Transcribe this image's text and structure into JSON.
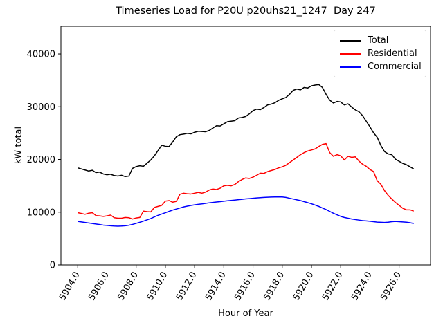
{
  "chart_data": {
    "type": "line",
    "title": "Timeseries Load for P20U p20uhs21_1247  Day 247",
    "xlabel": "Hour of Year",
    "ylabel": "kW total",
    "xlim": [
      5902.85,
      5928.15
    ],
    "ylim": [
      0,
      45250
    ],
    "grid": false,
    "legend_position": "upper right",
    "xticks": [
      5904,
      5906,
      5908,
      5910,
      5912,
      5914,
      5916,
      5918,
      5920,
      5922,
      5924,
      5926
    ],
    "xtick_labels": [
      "5904.0",
      "5906.0",
      "5908.0",
      "5910.0",
      "5912.0",
      "5914.0",
      "5916.0",
      "5918.0",
      "5920.0",
      "5922.0",
      "5924.0",
      "5926.0"
    ],
    "xtick_rotation": 60,
    "yticks": [
      0,
      10000,
      20000,
      30000,
      40000
    ],
    "ytick_labels": [
      "0",
      "10000",
      "20000",
      "30000",
      "40000"
    ],
    "x": [
      5904.0,
      5904.25,
      5904.5,
      5904.75,
      5905.0,
      5905.25,
      5905.5,
      5905.75,
      5906.0,
      5906.25,
      5906.5,
      5906.75,
      5907.0,
      5907.25,
      5907.5,
      5907.75,
      5908.0,
      5908.25,
      5908.5,
      5908.75,
      5909.0,
      5909.25,
      5909.5,
      5909.75,
      5910.0,
      5910.25,
      5910.5,
      5910.75,
      5911.0,
      5911.25,
      5911.5,
      5911.75,
      5912.0,
      5912.25,
      5912.5,
      5912.75,
      5913.0,
      5913.25,
      5913.5,
      5913.75,
      5914.0,
      5914.25,
      5914.5,
      5914.75,
      5915.0,
      5915.25,
      5915.5,
      5915.75,
      5916.0,
      5916.25,
      5916.5,
      5916.75,
      5917.0,
      5917.25,
      5917.5,
      5917.75,
      5918.0,
      5918.25,
      5918.5,
      5918.75,
      5919.0,
      5919.25,
      5919.5,
      5919.75,
      5920.0,
      5920.25,
      5920.5,
      5920.75,
      5921.0,
      5921.25,
      5921.5,
      5921.75,
      5922.0,
      5922.25,
      5922.5,
      5922.75,
      5923.0,
      5923.25,
      5923.5,
      5923.75,
      5924.0,
      5924.25,
      5924.5,
      5924.75,
      5925.0,
      5925.25,
      5925.5,
      5925.75,
      5926.0,
      5926.25,
      5926.5,
      5926.75,
      5927.0
    ],
    "series": [
      {
        "name": "Total",
        "color": "#000000",
        "values": [
          18400,
          18200,
          18000,
          17800,
          17950,
          17500,
          17600,
          17250,
          17100,
          17200,
          16950,
          16850,
          17000,
          16750,
          16850,
          18300,
          18650,
          18800,
          18700,
          19300,
          19900,
          20700,
          21700,
          22700,
          22500,
          22450,
          23300,
          24300,
          24700,
          24800,
          24950,
          24850,
          25150,
          25350,
          25300,
          25250,
          25500,
          25950,
          26400,
          26350,
          26750,
          27150,
          27250,
          27350,
          27850,
          27950,
          28150,
          28650,
          29250,
          29550,
          29450,
          29850,
          30350,
          30500,
          30750,
          31200,
          31500,
          31750,
          32350,
          33100,
          33350,
          33200,
          33650,
          33550,
          33950,
          34100,
          34200,
          33650,
          32350,
          31250,
          30700,
          31000,
          30900,
          30350,
          30550,
          29950,
          29400,
          29050,
          28300,
          27250,
          26200,
          25050,
          24200,
          22650,
          21500,
          21050,
          20900,
          20050,
          19650,
          19250,
          19000,
          18600,
          18200
        ]
      },
      {
        "name": "Residential",
        "color": "#ff0000",
        "values": [
          9900,
          9750,
          9600,
          9800,
          9900,
          9350,
          9300,
          9200,
          9300,
          9450,
          8950,
          8850,
          8850,
          9000,
          8950,
          8700,
          8900,
          9000,
          10200,
          10100,
          10050,
          10900,
          11100,
          11300,
          12100,
          12200,
          11900,
          12050,
          13400,
          13600,
          13500,
          13450,
          13600,
          13750,
          13600,
          13800,
          14200,
          14400,
          14300,
          14550,
          15000,
          15100,
          15000,
          15250,
          15800,
          16200,
          16500,
          16400,
          16650,
          17000,
          17400,
          17350,
          17700,
          17900,
          18100,
          18400,
          18600,
          18900,
          19400,
          19900,
          20400,
          20900,
          21300,
          21600,
          21800,
          22000,
          22450,
          22850,
          23000,
          21300,
          20600,
          20900,
          20700,
          19900,
          20600,
          20400,
          20500,
          19700,
          19100,
          18700,
          18100,
          17700,
          15950,
          15300,
          14100,
          13200,
          12500,
          11850,
          11300,
          10750,
          10450,
          10450,
          10200
        ]
      },
      {
        "name": "Commercial",
        "color": "#0000ff",
        "values": [
          8250,
          8150,
          8050,
          7950,
          7850,
          7750,
          7650,
          7550,
          7500,
          7430,
          7380,
          7350,
          7380,
          7430,
          7530,
          7680,
          7880,
          8080,
          8300,
          8550,
          8800,
          9100,
          9400,
          9650,
          9900,
          10150,
          10400,
          10600,
          10800,
          11000,
          11150,
          11280,
          11400,
          11500,
          11580,
          11680,
          11780,
          11850,
          11930,
          12000,
          12080,
          12160,
          12230,
          12300,
          12380,
          12450,
          12520,
          12580,
          12640,
          12700,
          12750,
          12800,
          12840,
          12870,
          12890,
          12900,
          12880,
          12800,
          12650,
          12500,
          12350,
          12200,
          12000,
          11800,
          11600,
          11350,
          11100,
          10800,
          10500,
          10150,
          9800,
          9500,
          9200,
          9000,
          8850,
          8700,
          8600,
          8500,
          8400,
          8350,
          8280,
          8200,
          8120,
          8080,
          8050,
          8100,
          8200,
          8250,
          8200,
          8150,
          8100,
          8000,
          7850
        ]
      }
    ]
  }
}
